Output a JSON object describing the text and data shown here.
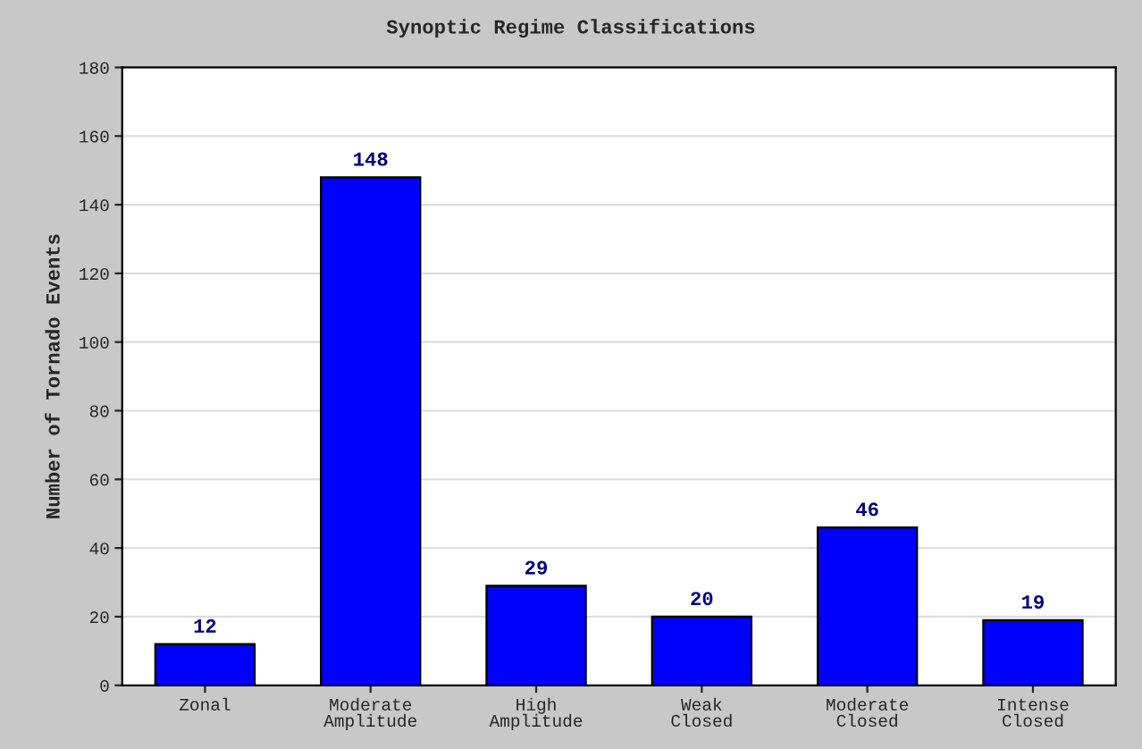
{
  "chart_data": {
    "type": "bar",
    "title": "Synoptic Regime Classifications",
    "ylabel": "Number of Tornado Events",
    "categories": [
      "Zonal",
      "Moderate\nAmplitude",
      "High\nAmplitude",
      "Weak\nClosed",
      "Moderate\nClosed",
      "Intense\nClosed"
    ],
    "values": [
      12,
      148,
      29,
      20,
      46,
      19
    ],
    "color": "#0000ff",
    "ylim": [
      0,
      180
    ],
    "yticks": [
      0,
      20,
      40,
      60,
      80,
      100,
      120,
      140,
      160,
      180
    ],
    "grid": "y",
    "data_labels": true
  }
}
